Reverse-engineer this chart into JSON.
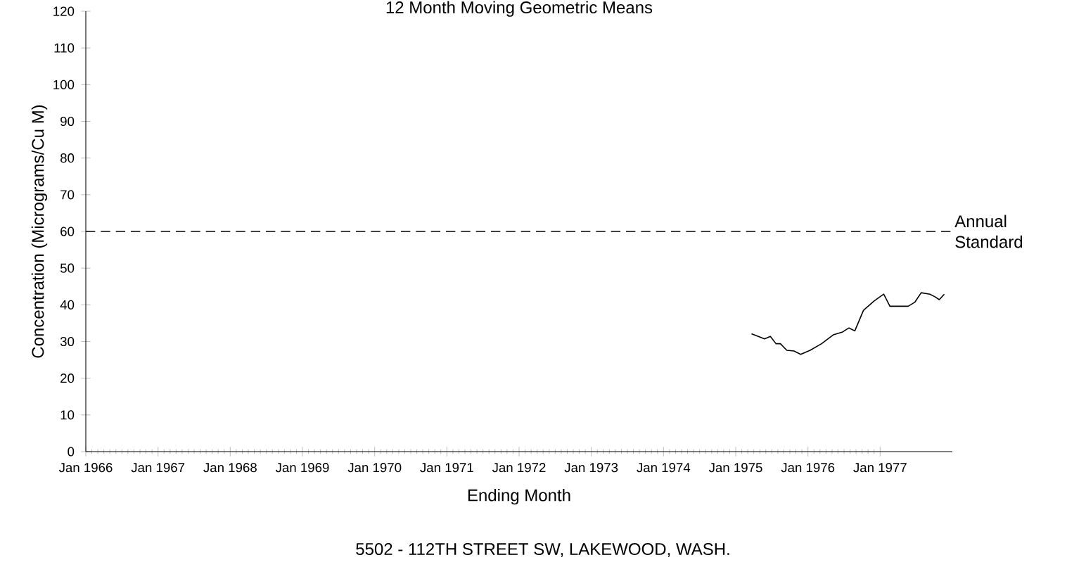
{
  "chart_data": {
    "type": "line",
    "title": "12 Month Moving Geometric Means",
    "xlabel": "Ending Month",
    "ylabel": "Concentration (Micrograms/Cu M)",
    "annotations": [
      "5502 - 112TH STREET SW, LAKEWOOD, WASH."
    ],
    "xlim": [
      "1966-01",
      "1978-01"
    ],
    "ylim": [
      0,
      120
    ],
    "xticks": [
      {
        "value": "1966-01",
        "label": "Jan 1966"
      },
      {
        "value": "1967-01",
        "label": "Jan 1967"
      },
      {
        "value": "1968-01",
        "label": "Jan 1968"
      },
      {
        "value": "1969-01",
        "label": "Jan 1969"
      },
      {
        "value": "1970-01",
        "label": "Jan 1970"
      },
      {
        "value": "1971-01",
        "label": "Jan 1971"
      },
      {
        "value": "1972-01",
        "label": "Jan 1972"
      },
      {
        "value": "1973-01",
        "label": "Jan 1973"
      },
      {
        "value": "1974-01",
        "label": "Jan 1974"
      },
      {
        "value": "1975-01",
        "label": "Jan 1975"
      },
      {
        "value": "1976-01",
        "label": "Jan 1976"
      },
      {
        "value": "1977-01",
        "label": "Jan 1977"
      }
    ],
    "yticks": [
      0,
      10,
      20,
      30,
      40,
      50,
      60,
      70,
      80,
      90,
      100,
      110,
      120
    ],
    "ref_lines": [
      {
        "axis": "y",
        "value": 60,
        "label": "Annual Standard",
        "color": "#000000",
        "line_style": "dashed"
      }
    ],
    "series": [
      {
        "color": "#000000",
        "x": [
          "1975-03-20",
          "1975-05-25",
          "1975-06-24",
          "1975-07-22",
          "1975-08-14",
          "1975-09-16",
          "1975-10-22",
          "1975-11-25",
          "1976-01-12",
          "1976-03-09",
          "1976-05-07",
          "1976-06-24",
          "1976-07-26",
          "1976-08-25",
          "1976-10-08",
          "1976-12-02",
          "1977-01-19",
          "1977-02-20",
          "1977-04-04",
          "1977-05-21",
          "1977-06-24",
          "1977-07-26",
          "1977-09-09",
          "1977-10-04",
          "1977-10-26",
          "1977-11-21"
        ],
        "values": [
          32.1,
          30.7,
          31.4,
          29.4,
          29.4,
          27.6,
          27.4,
          26.5,
          27.6,
          29.4,
          31.8,
          32.6,
          33.7,
          32.9,
          38.5,
          41.1,
          42.9,
          39.6,
          39.6,
          39.6,
          40.7,
          43.3,
          42.9,
          42.2,
          41.4,
          42.9
        ]
      }
    ]
  }
}
